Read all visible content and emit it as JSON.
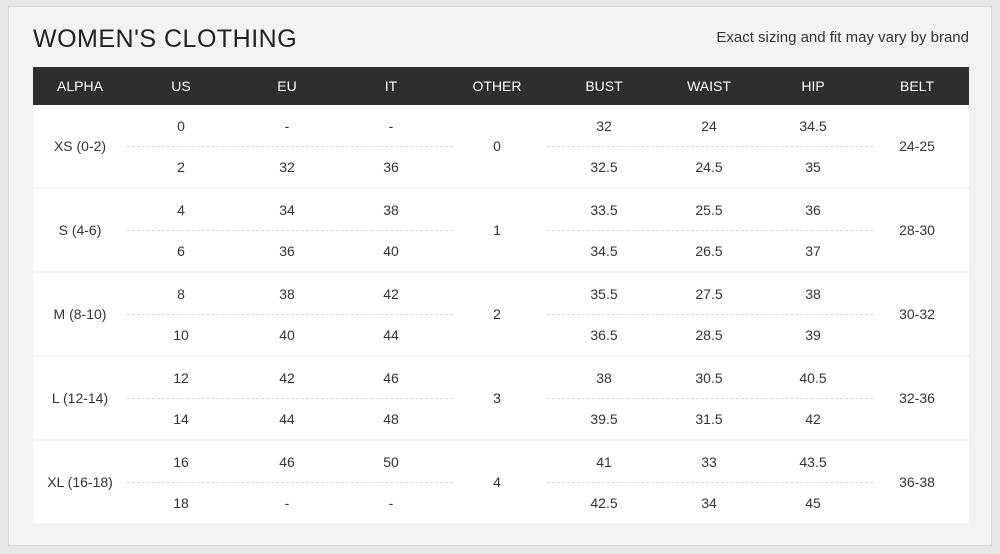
{
  "title": "WOMEN'S CLOTHING",
  "note": "Exact sizing and fit may vary by brand",
  "headers": [
    "ALPHA",
    "US",
    "EU",
    "IT",
    "OTHER",
    "BUST",
    "WAIST",
    "HIP",
    "BELT"
  ],
  "groups": [
    {
      "alpha": "XS (0-2)",
      "other": "0",
      "belt": "24-25",
      "rows": [
        {
          "us": "0",
          "eu": "-",
          "it": "-",
          "bust": "32",
          "waist": "24",
          "hip": "34.5"
        },
        {
          "us": "2",
          "eu": "32",
          "it": "36",
          "bust": "32.5",
          "waist": "24.5",
          "hip": "35"
        }
      ]
    },
    {
      "alpha": "S (4-6)",
      "other": "1",
      "belt": "28-30",
      "rows": [
        {
          "us": "4",
          "eu": "34",
          "it": "38",
          "bust": "33.5",
          "waist": "25.5",
          "hip": "36"
        },
        {
          "us": "6",
          "eu": "36",
          "it": "40",
          "bust": "34.5",
          "waist": "26.5",
          "hip": "37"
        }
      ]
    },
    {
      "alpha": "M (8-10)",
      "other": "2",
      "belt": "30-32",
      "rows": [
        {
          "us": "8",
          "eu": "38",
          "it": "42",
          "bust": "35.5",
          "waist": "27.5",
          "hip": "38"
        },
        {
          "us": "10",
          "eu": "40",
          "it": "44",
          "bust": "36.5",
          "waist": "28.5",
          "hip": "39"
        }
      ]
    },
    {
      "alpha": "L (12-14)",
      "other": "3",
      "belt": "32-36",
      "rows": [
        {
          "us": "12",
          "eu": "42",
          "it": "46",
          "bust": "38",
          "waist": "30.5",
          "hip": "40.5"
        },
        {
          "us": "14",
          "eu": "44",
          "it": "48",
          "bust": "39.5",
          "waist": "31.5",
          "hip": "42"
        }
      ]
    },
    {
      "alpha": "XL (16-18)",
      "other": "4",
      "belt": "36-38",
      "rows": [
        {
          "us": "16",
          "eu": "46",
          "it": "50",
          "bust": "41",
          "waist": "33",
          "hip": "43.5"
        },
        {
          "us": "18",
          "eu": "-",
          "it": "-",
          "bust": "42.5",
          "waist": "34",
          "hip": "45"
        }
      ]
    }
  ]
}
